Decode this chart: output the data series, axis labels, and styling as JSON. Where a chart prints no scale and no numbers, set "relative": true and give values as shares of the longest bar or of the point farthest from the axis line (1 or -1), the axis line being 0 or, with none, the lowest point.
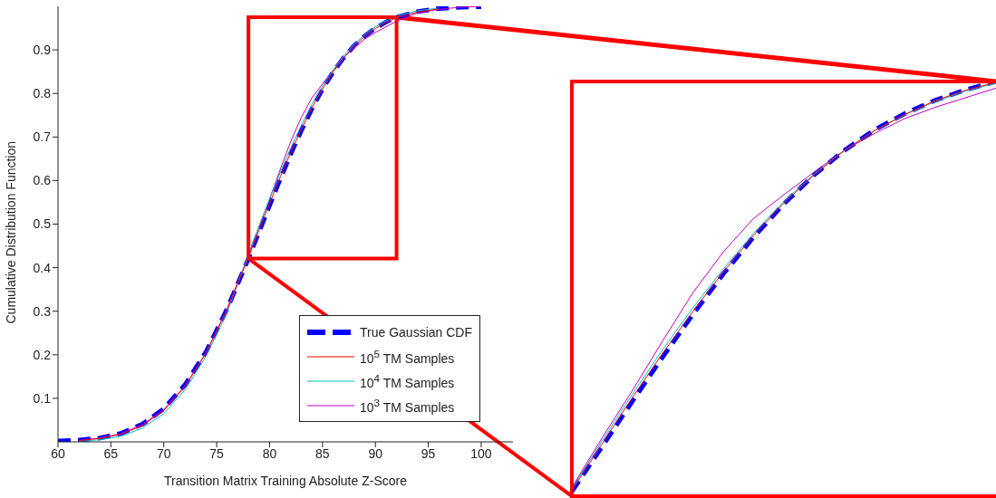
{
  "chart_data": [
    {
      "type": "line",
      "xlabel": "Transition Matrix Training Absolute Z-Score",
      "ylabel": "Cumulative Distribution Function",
      "xlim": [
        60,
        103
      ],
      "ylim": [
        0,
        1
      ],
      "xticks": [
        60,
        65,
        70,
        75,
        80,
        85,
        90,
        95,
        100
      ],
      "yticks": [
        0.1,
        0.2,
        0.3,
        0.4,
        0.5,
        0.6,
        0.7,
        0.8,
        0.9
      ],
      "grid": false,
      "legend": "bottom right",
      "marker": "none",
      "series": [
        {
          "name": "True Gaussian CDF",
          "color": "#0000ff",
          "line_style": "dashed",
          "x": [
            60,
            62,
            64,
            66,
            68,
            70,
            72,
            74,
            76,
            78,
            79,
            80,
            81,
            82,
            83,
            84,
            85,
            86,
            87,
            88,
            89,
            90,
            91,
            92,
            94,
            96,
            98,
            100
          ],
          "values": [
            0.002,
            0.004,
            0.009,
            0.02,
            0.041,
            0.076,
            0.131,
            0.207,
            0.306,
            0.421,
            0.482,
            0.543,
            0.603,
            0.661,
            0.715,
            0.765,
            0.81,
            0.849,
            0.882,
            0.91,
            0.932,
            0.95,
            0.964,
            0.975,
            0.988,
            0.995,
            0.998,
            0.999
          ]
        },
        {
          "name": "10$^{5}$ TM Samples",
          "color": "#ff0000",
          "line_style": "solid",
          "x": [
            62,
            64,
            66,
            68,
            70,
            72,
            74,
            76,
            78,
            79,
            80,
            81,
            82,
            83,
            84,
            85,
            86,
            87,
            88,
            89,
            90,
            91,
            92,
            94,
            96
          ],
          "values": [
            0.003,
            0.008,
            0.018,
            0.038,
            0.072,
            0.127,
            0.204,
            0.305,
            0.423,
            0.486,
            0.548,
            0.608,
            0.665,
            0.718,
            0.767,
            0.811,
            0.849,
            0.882,
            0.909,
            0.931,
            0.949,
            0.963,
            0.974,
            0.987,
            0.994
          ]
        },
        {
          "name": "10$^{4}$ TM Samples",
          "color": "#00bfbf",
          "line_style": "solid",
          "x": [
            62,
            64,
            66,
            68,
            70,
            72,
            74,
            76,
            78,
            79,
            80,
            81,
            82,
            83,
            84,
            85,
            86,
            87,
            88,
            89,
            90,
            91,
            92,
            94,
            96
          ],
          "values": [
            0.001,
            0.005,
            0.013,
            0.032,
            0.065,
            0.119,
            0.197,
            0.298,
            0.43,
            0.495,
            0.558,
            0.618,
            0.675,
            0.727,
            0.775,
            0.817,
            0.854,
            0.886,
            0.913,
            0.935,
            0.953,
            0.967,
            0.978,
            0.99,
            0.996
          ]
        },
        {
          "name": "10$^{3}$ TM Samples",
          "color": "#bf00bf",
          "line_style": "solid",
          "x": [
            62,
            64,
            66,
            68,
            70,
            72,
            74,
            76,
            78,
            79,
            80,
            81,
            82,
            83,
            84,
            85,
            86,
            87,
            88,
            89,
            90,
            91,
            92,
            94,
            96,
            98,
            100
          ],
          "values": [
            0.003,
            0.009,
            0.019,
            0.04,
            0.074,
            0.128,
            0.205,
            0.307,
            0.427,
            0.494,
            0.558,
            0.625,
            0.69,
            0.745,
            0.79,
            0.822,
            0.853,
            0.882,
            0.905,
            0.925,
            0.94,
            0.953,
            0.966,
            0.985,
            0.993,
            0.998,
            1.0
          ]
        }
      ]
    },
    {
      "type": "line",
      "relative": true,
      "categories": [
        null,
        null,
        null,
        null,
        null,
        null,
        null,
        null,
        null,
        null,
        null,
        null,
        null,
        null,
        null
      ],
      "marker": "none",
      "series": [
        {
          "color": "#0000ff",
          "line_style": "dashed",
          "values": [
            0.011,
            0.12,
            0.229,
            0.336,
            0.439,
            0.536,
            0.625,
            0.705,
            0.775,
            0.834,
            0.884,
            0.923,
            0.955,
            0.98,
            1.0
          ]
        },
        {
          "color": "#ff0000",
          "line_style": "solid",
          "values": [
            0.014,
            0.127,
            0.238,
            0.345,
            0.446,
            0.541,
            0.629,
            0.707,
            0.775,
            0.834,
            0.882,
            0.921,
            0.954,
            0.979,
            0.998
          ]
        },
        {
          "color": "#00bfbf",
          "line_style": "solid",
          "values": [
            0.018,
            0.134,
            0.246,
            0.354,
            0.455,
            0.548,
            0.634,
            0.711,
            0.777,
            0.834,
            0.882,
            0.92,
            0.952,
            0.977,
            0.996
          ]
        },
        {
          "color": "#bf00bf",
          "line_style": "solid",
          "values": [
            0.021,
            0.141,
            0.255,
            0.375,
            0.491,
            0.589,
            0.67,
            0.727,
            0.782,
            0.834,
            0.875,
            0.911,
            0.938,
            0.961,
            0.984
          ]
        }
      ]
    }
  ]
}
